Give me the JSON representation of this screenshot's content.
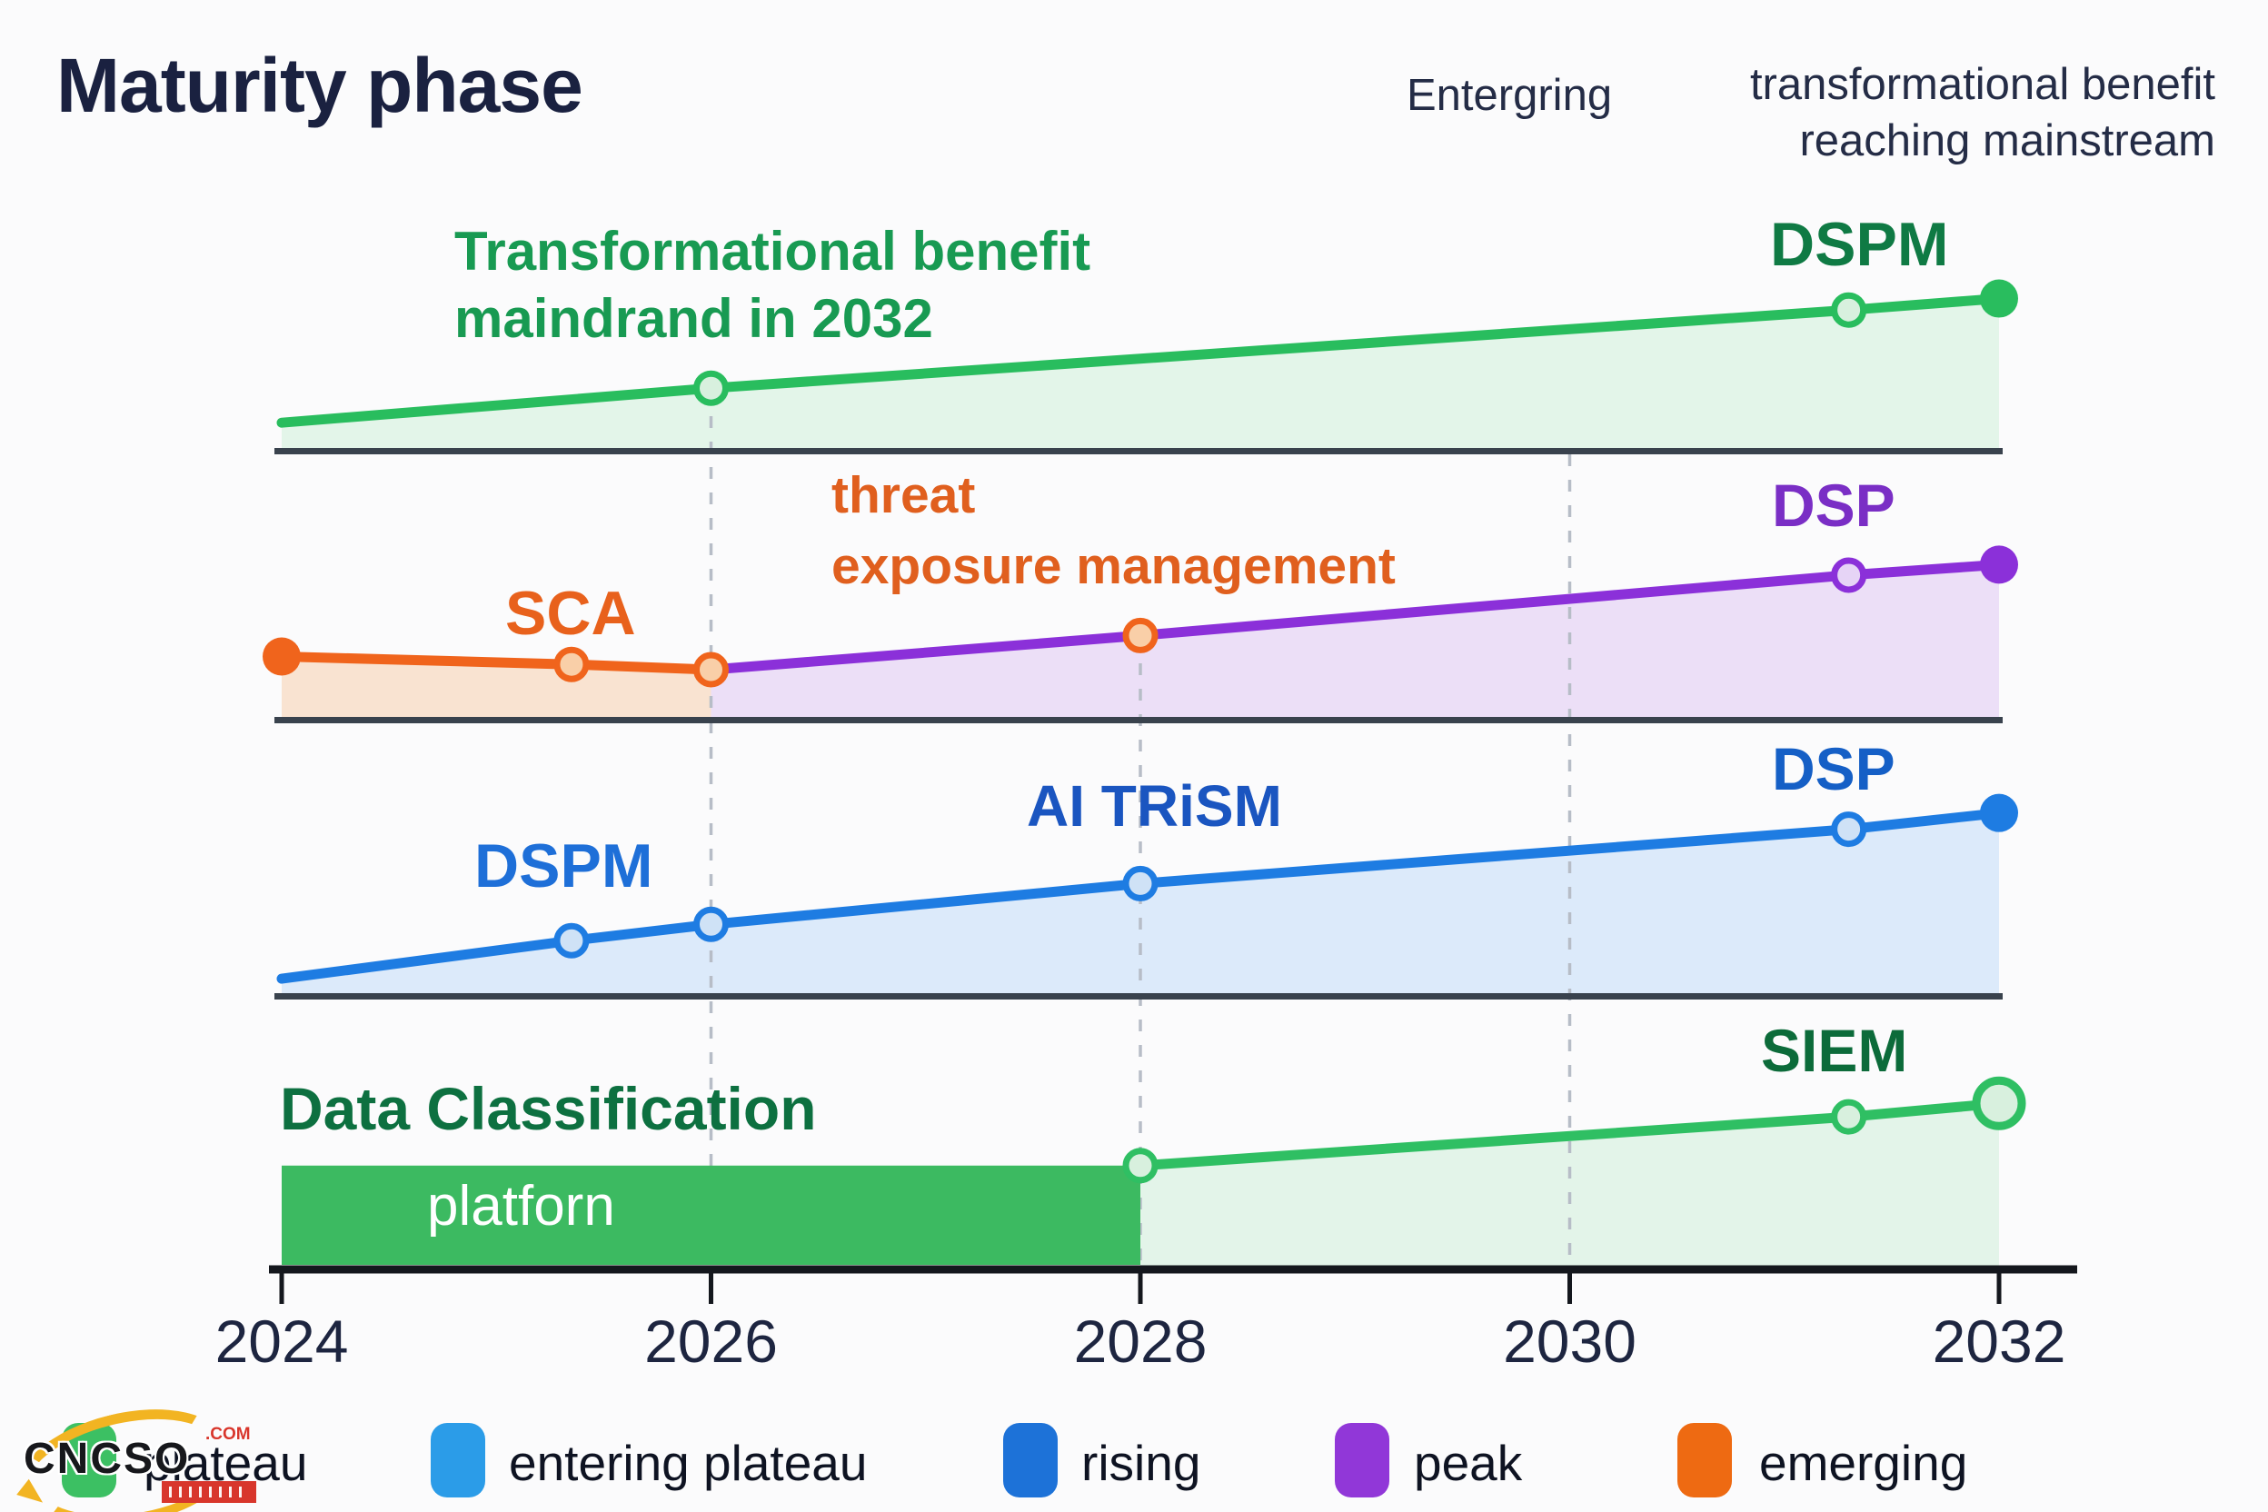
{
  "title": "Maturity phase",
  "top_annotations": {
    "emerging": "Entergring",
    "mainstream_line1": "transformational benefit",
    "mainstream_line2": "reaching mainstream"
  },
  "x_axis": {
    "ticks": [
      "2024",
      "2026",
      "2028",
      "2030",
      "2032"
    ]
  },
  "legend": {
    "items": [
      {
        "label": "plateau",
        "color": "#3cc063"
      },
      {
        "label": "entering plateau",
        "color": "#2b9ce8"
      },
      {
        "label": "rising",
        "color": "#1d72d8"
      },
      {
        "label": "peak",
        "color": "#9137d8"
      },
      {
        "label": "emerging",
        "color": "#ee6a12"
      }
    ]
  },
  "watermark": {
    "brand": "CNCSO",
    "tld": ".COM"
  },
  "chart_data": {
    "type": "area",
    "subtype": "maturity-hype-cycle-bands",
    "x": {
      "ticks": [
        2024,
        2026,
        2028,
        2030,
        2032
      ],
      "range": [
        2024,
        2032
      ]
    },
    "grid": "dashed-vertical-guides",
    "legend_position": "bottom",
    "labels": {
      "band1_annot_line1": "Transformational benefit",
      "band1_annot_line2": "maindrand in 2032",
      "band1_series": "DSPM",
      "band2_sca": "SCA",
      "band2_tem_line1": "threat",
      "band2_tem_line2": "exposure management",
      "band2_series": "DSP",
      "band3_dspm": "DSPM",
      "band3_ai_trism": "AI TRiSM",
      "band3_series": "DSP",
      "band4_title": "Data Classification",
      "band4_bar": "platforn",
      "band4_series": "SIEM"
    },
    "bands": [
      {
        "name": "top-plateau-band",
        "series": [
          {
            "name": "DSPM",
            "color": "#29bd5e",
            "fill": "#e3f5e9",
            "marker_fill": "#d8f0de",
            "points": [
              {
                "x": 2024,
                "v": 11
              },
              {
                "x": 2026,
                "v": 26,
                "marker": "hollow"
              },
              {
                "x": 2031.3,
                "v": 60,
                "marker": "hollow"
              },
              {
                "x": 2032,
                "v": 65,
                "marker": "solid"
              }
            ]
          }
        ]
      },
      {
        "name": "emerging-to-peak-band",
        "series": [
          {
            "name": "SCA",
            "color": "#f0641c",
            "fill": "#f9e3d1",
            "marker_fill": "#f9cfa8",
            "points": [
              {
                "x": 2024,
                "v": 23,
                "marker": "solid"
              },
              {
                "x": 2025.35,
                "v": 20,
                "marker": "hollow"
              },
              {
                "x": 2026,
                "v": 18,
                "marker": "hollow"
              }
            ]
          },
          {
            "name": "DSP",
            "color": "#8b30d9",
            "fill": "#ecdff7",
            "marker_fill": "#e6d4f6",
            "points": [
              {
                "x": 2026,
                "v": 18
              },
              {
                "x": 2028,
                "v": 31,
                "marker": "hollow",
                "marker_color": "#f0641c",
                "marker_fill": "#f9cfa8"
              },
              {
                "x": 2031.3,
                "v": 54,
                "marker": "hollow"
              },
              {
                "x": 2032,
                "v": 58,
                "marker": "solid"
              }
            ]
          }
        ]
      },
      {
        "name": "rising-band",
        "series": [
          {
            "name": "DSPM / AI TRiSM / DSP",
            "color": "#1e7ce2",
            "fill": "#dceafa",
            "marker_fill": "#cfe2f6",
            "points": [
              {
                "x": 2024,
                "v": 6
              },
              {
                "x": 2025.35,
                "v": 20,
                "marker": "hollow"
              },
              {
                "x": 2026,
                "v": 26,
                "marker": "hollow"
              },
              {
                "x": 2028,
                "v": 41,
                "marker": "hollow"
              },
              {
                "x": 2031.3,
                "v": 61,
                "marker": "hollow"
              },
              {
                "x": 2032,
                "v": 67,
                "marker": "solid"
              }
            ]
          }
        ]
      },
      {
        "name": "bottom-band",
        "bar": {
          "label": "platforn",
          "from": 2024,
          "to": 2028,
          "v": 38,
          "color": "#3cba61"
        },
        "series": [
          {
            "name": "SIEM",
            "color": "#2fbf63",
            "fill": "#e3f4e9",
            "marker_fill": "#d8f0de",
            "points": [
              {
                "x": 2028,
                "v": 38,
                "marker": "hollow"
              },
              {
                "x": 2031.3,
                "v": 56,
                "marker": "hollow"
              },
              {
                "x": 2032,
                "v": 61,
                "marker": "hollow_large"
              }
            ]
          }
        ]
      }
    ],
    "dashed_guides": [
      {
        "x": 2026
      },
      {
        "x": 2028
      },
      {
        "x": 2030
      }
    ]
  }
}
